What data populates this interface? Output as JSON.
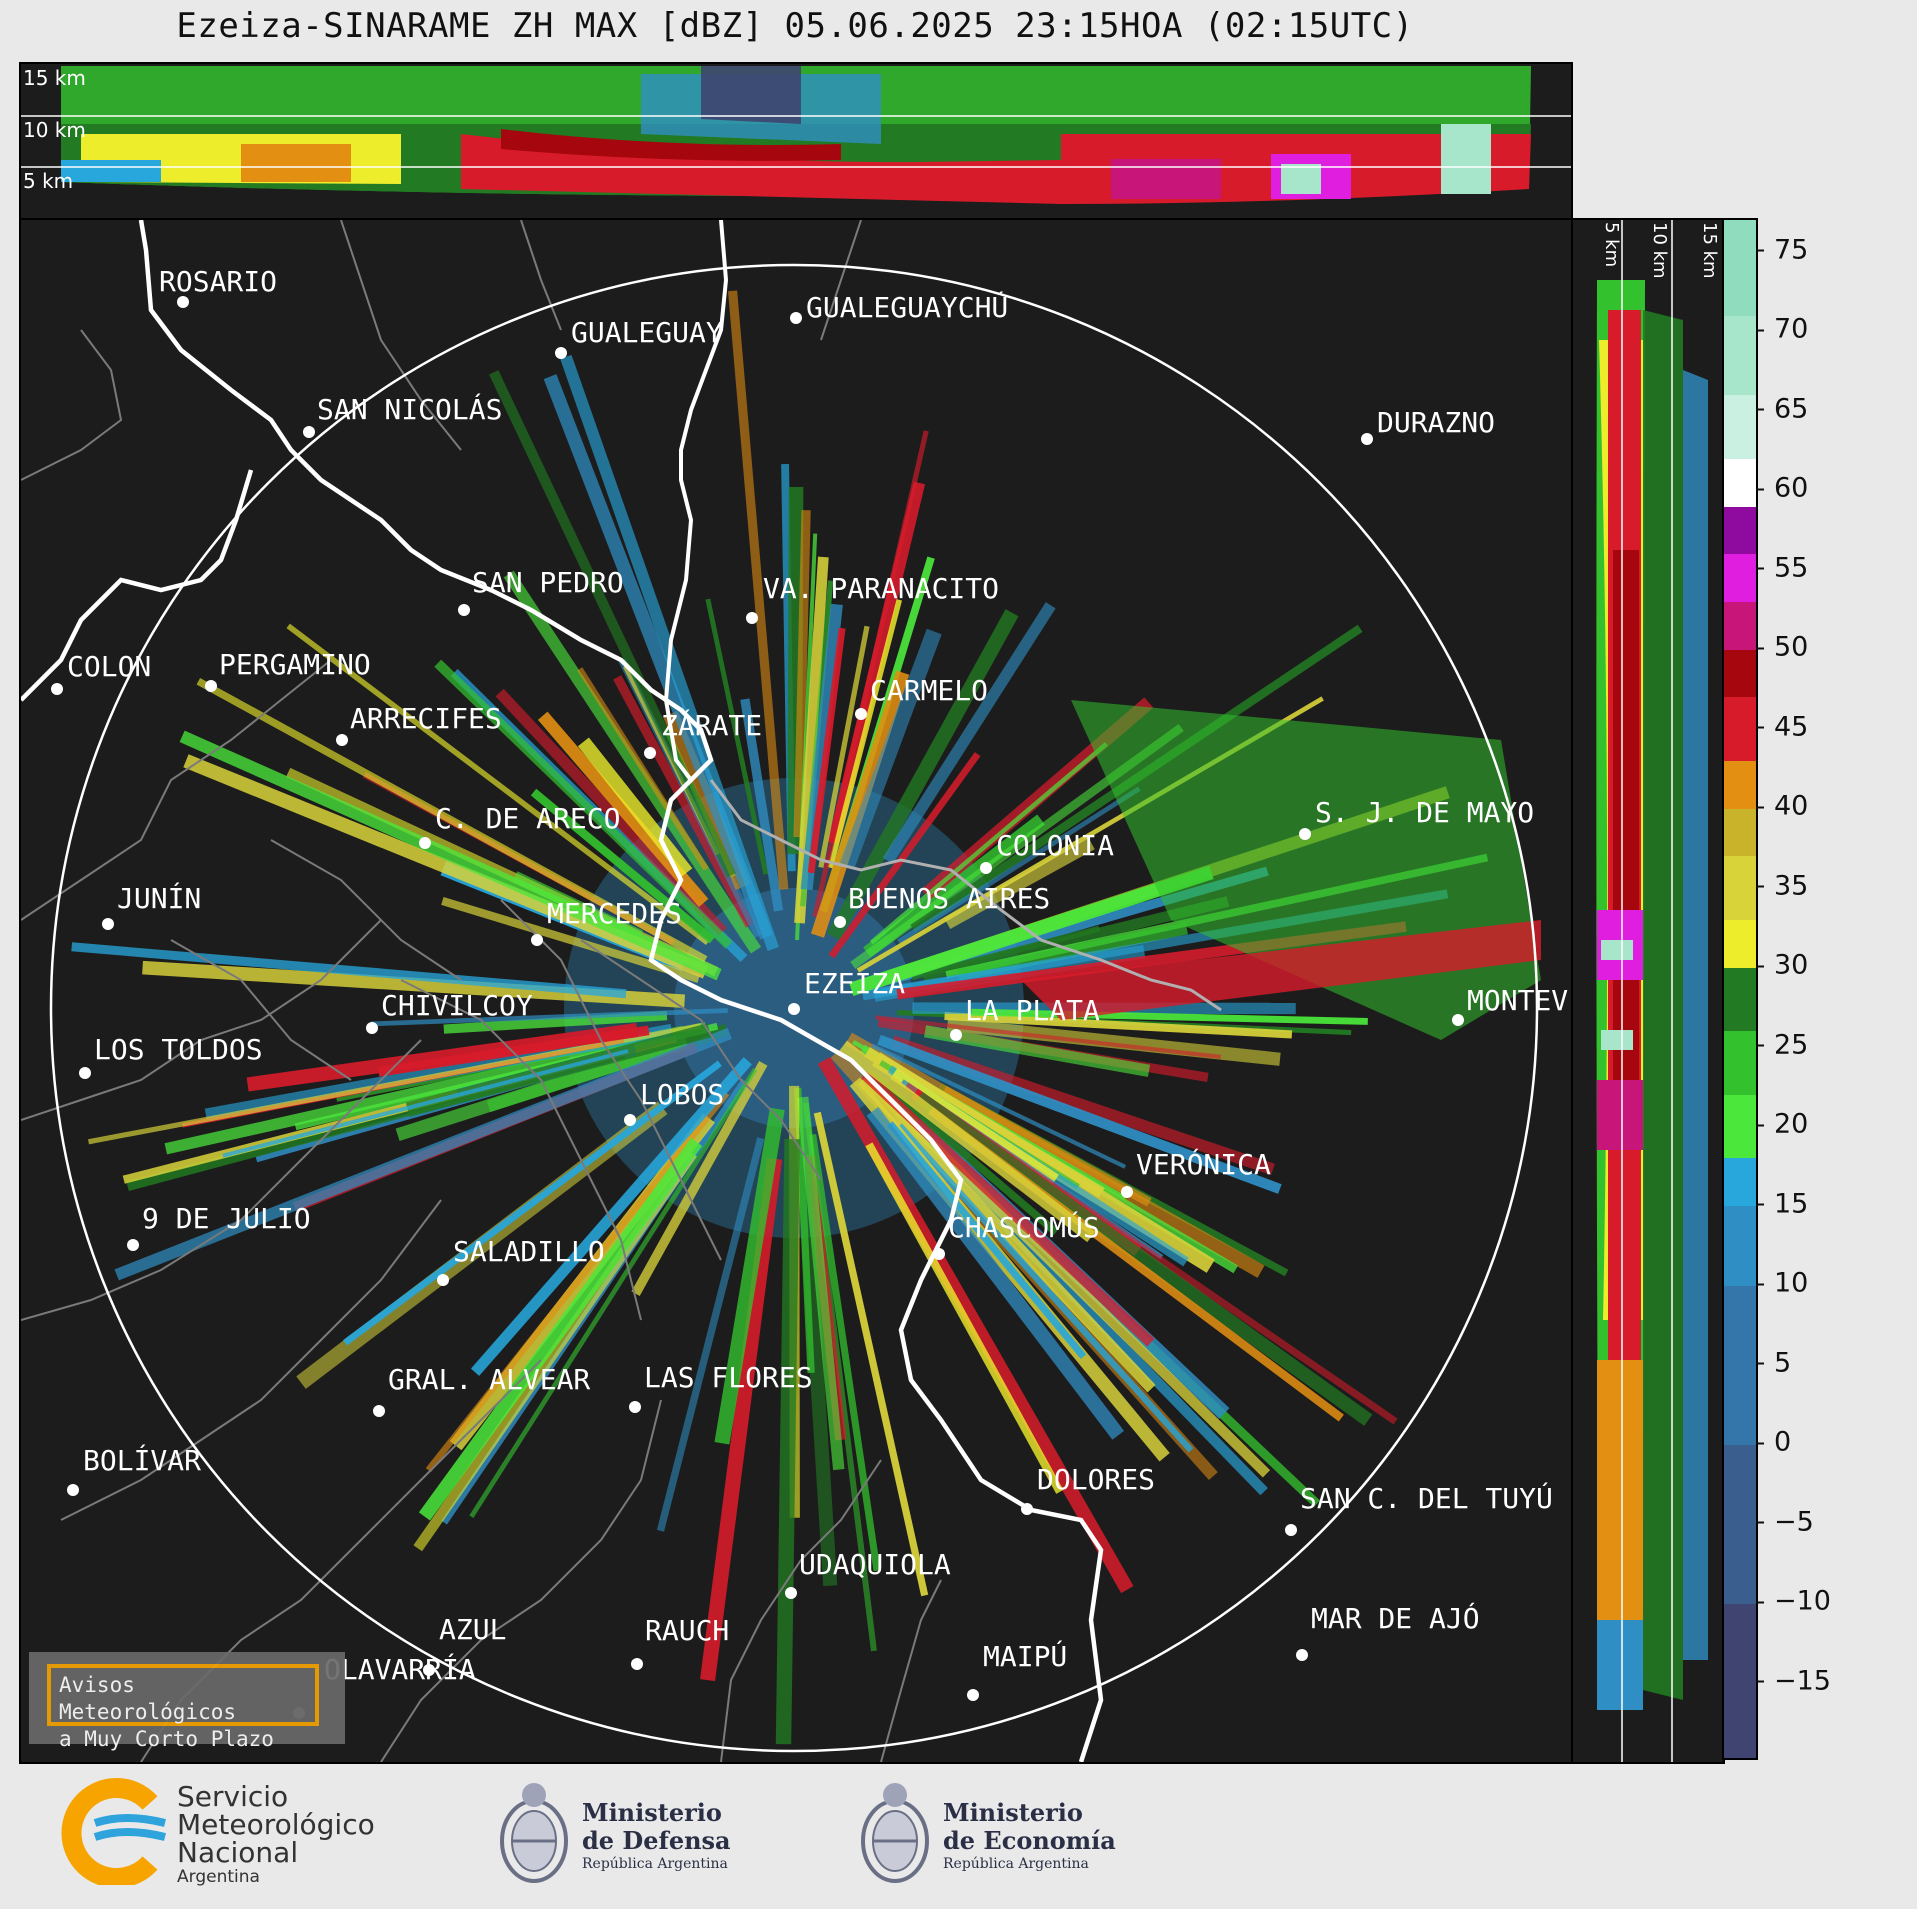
{
  "title": "Ezeiza-SINARAME ZH MAX [dBZ] 05.06.2025 23:15HOA (02:15UTC)",
  "top_panel": {
    "height_labels": [
      "15 km",
      "10 km",
      "5 km"
    ]
  },
  "side_panel": {
    "height_labels": [
      "5 km",
      "10 km",
      "15 km"
    ]
  },
  "colorbar": {
    "unit": "dBZ",
    "min": -20,
    "max": 77,
    "ticks": [
      "75",
      "70",
      "65",
      "60",
      "55",
      "50",
      "45",
      "40",
      "35",
      "30",
      "25",
      "20",
      "15",
      "10",
      "5",
      "0",
      "−5",
      "−10",
      "−15"
    ],
    "tick_values": [
      75,
      70,
      65,
      60,
      55,
      50,
      45,
      40,
      35,
      30,
      25,
      20,
      15,
      10,
      5,
      0,
      -5,
      -10,
      -15
    ],
    "segments": [
      {
        "from": -20,
        "to": -10,
        "color": "#3f4470"
      },
      {
        "from": -10,
        "to": 0,
        "color": "#3a5f8f"
      },
      {
        "from": 0,
        "to": 10,
        "color": "#3476aa"
      },
      {
        "from": 10,
        "to": 15,
        "color": "#2f8fc4"
      },
      {
        "from": 15,
        "to": 18,
        "color": "#27a7dc"
      },
      {
        "from": 18,
        "to": 22,
        "color": "#4be83b"
      },
      {
        "from": 22,
        "to": 26,
        "color": "#33c12e"
      },
      {
        "from": 26,
        "to": 30,
        "color": "#227a22"
      },
      {
        "from": 30,
        "to": 33,
        "color": "#eded2c"
      },
      {
        "from": 33,
        "to": 37,
        "color": "#d9d33a"
      },
      {
        "from": 37,
        "to": 40,
        "color": "#c9b32a"
      },
      {
        "from": 40,
        "to": 43,
        "color": "#e38f12"
      },
      {
        "from": 43,
        "to": 47,
        "color": "#d81b2b"
      },
      {
        "from": 47,
        "to": 50,
        "color": "#a6060e"
      },
      {
        "from": 50,
        "to": 53,
        "color": "#c7157a"
      },
      {
        "from": 53,
        "to": 56,
        "color": "#e01ee0"
      },
      {
        "from": 56,
        "to": 59,
        "color": "#8f0a9f"
      },
      {
        "from": 59,
        "to": 62,
        "color": "#ffffff"
      },
      {
        "from": 62,
        "to": 66,
        "color": "#c9f0e0"
      },
      {
        "from": 66,
        "to": 71,
        "color": "#a8e6cc"
      },
      {
        "from": 71,
        "to": 77,
        "color": "#8fdcbe"
      }
    ]
  },
  "cities": [
    {
      "name": "ROSARIO"
    },
    {
      "name": "GUALEGUAYCHÚ"
    },
    {
      "name": "GUALEGUAY"
    },
    {
      "name": "SAN NICOLÁS"
    },
    {
      "name": "DURAZNO"
    },
    {
      "name": "SAN PEDRO"
    },
    {
      "name": "VA. PARANACITO"
    },
    {
      "name": "COLON"
    },
    {
      "name": "PERGAMINO"
    },
    {
      "name": "CARMELO"
    },
    {
      "name": "ARRECIFES"
    },
    {
      "name": "ZÁRATE"
    },
    {
      "name": "C. DE ARECO"
    },
    {
      "name": "S. J. DE MAYO"
    },
    {
      "name": "COLONIA"
    },
    {
      "name": "JUNÍN"
    },
    {
      "name": "MERCEDES"
    },
    {
      "name": "BUENOS AIRES"
    },
    {
      "name": "EZEIZA"
    },
    {
      "name": "MONTEV"
    },
    {
      "name": "CHIVILCOY"
    },
    {
      "name": "LA PLATA"
    },
    {
      "name": "LOS TOLDOS"
    },
    {
      "name": "LOBOS"
    },
    {
      "name": "VERÓNICA"
    },
    {
      "name": "9 DE JULIO"
    },
    {
      "name": "CHASCOMÚS"
    },
    {
      "name": "SALADILLO"
    },
    {
      "name": "GRAL. ALVEAR"
    },
    {
      "name": "LAS FLORES"
    },
    {
      "name": "BOLÍVAR"
    },
    {
      "name": "DOLORES"
    },
    {
      "name": "SAN C. DEL TUYÚ"
    },
    {
      "name": "UDAQUIOLA"
    },
    {
      "name": "AZUL"
    },
    {
      "name": "RAUCH"
    },
    {
      "name": "MAR DE AJÓ"
    },
    {
      "name": "MAIPÚ"
    },
    {
      "name": "OLAVARRÍA"
    }
  ],
  "alert_box": {
    "line1": "Avisos Meteorológicos",
    "line2": "a Muy Corto Plazo"
  },
  "logos": {
    "smn": {
      "line1": "Servicio",
      "line2": "Meteorológico",
      "line3": "Nacional",
      "line4": "Argentina"
    },
    "defensa": {
      "line1": "Ministerio",
      "line2": "de Defensa",
      "line3": "República Argentina"
    },
    "economia": {
      "line1": "Ministerio",
      "line2": "de Economía",
      "line3": "República Argentina"
    }
  }
}
